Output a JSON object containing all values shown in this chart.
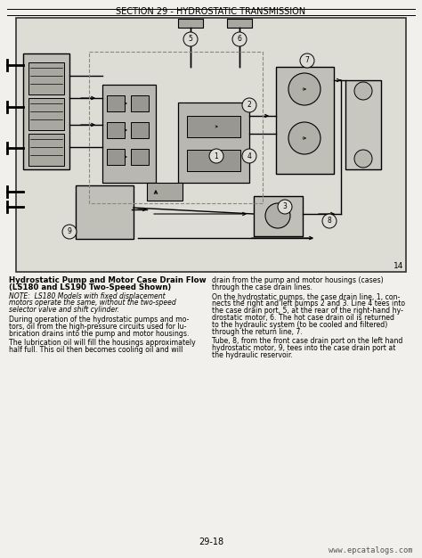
{
  "title": "SECTION 29 - HYDROSTATIC TRANSMISSION",
  "page_number": "29-18",
  "watermark": "www.epcatalogs.com",
  "fig_number": "14",
  "page_bg": "#f2f0ec",
  "diagram_bg": "#ddddd5",
  "heading_line1": "Hydrostatic Pump and Motor Case Drain Flow",
  "heading_line2": "(LS180 and LS190 Two-Speed Shown)",
  "note_line1": "NOTE:  LS180 Models with fixed displacement",
  "note_line2": "motors operate the same, without the two-speed",
  "note_line3": "selector valve and shift cylinder.",
  "lp1_line1": "During operation of the hydrostatic pumps and mo-",
  "lp1_line2": "tors, oil from the high-pressure circuits used for lu-",
  "lp1_line3": "brication drains into the pump and motor housings.",
  "lp2_line1": "The lubrication oil will fill the housings approximately",
  "lp2_line2": "half full. This oil then becomes cooling oil and will",
  "rp1_line1": "drain from the pump and motor housings (cases)",
  "rp1_line2": "through the case drain lines.",
  "rp2_line1": "On the hydrostatic pumps, the case drain line, 1, con-",
  "rp2_line2": "nects the right and left pumps 2 and 3. Line 4 tees into",
  "rp2_line3": "the case drain port, 5, at the rear of the right-hand hy-",
  "rp2_line4": "drostatic motor, 6. The hot case drain oil is returned",
  "rp2_line5": "to the hydraulic system (to be cooled and filtered)",
  "rp2_line6": "through the return line, 7.",
  "rp3_line1": "Tube, 8, from the front case drain port on the left hand",
  "rp3_line2": "hydrostatic motor, 9, tees into the case drain port at",
  "rp3_line3": "the hydraulic reservoir."
}
